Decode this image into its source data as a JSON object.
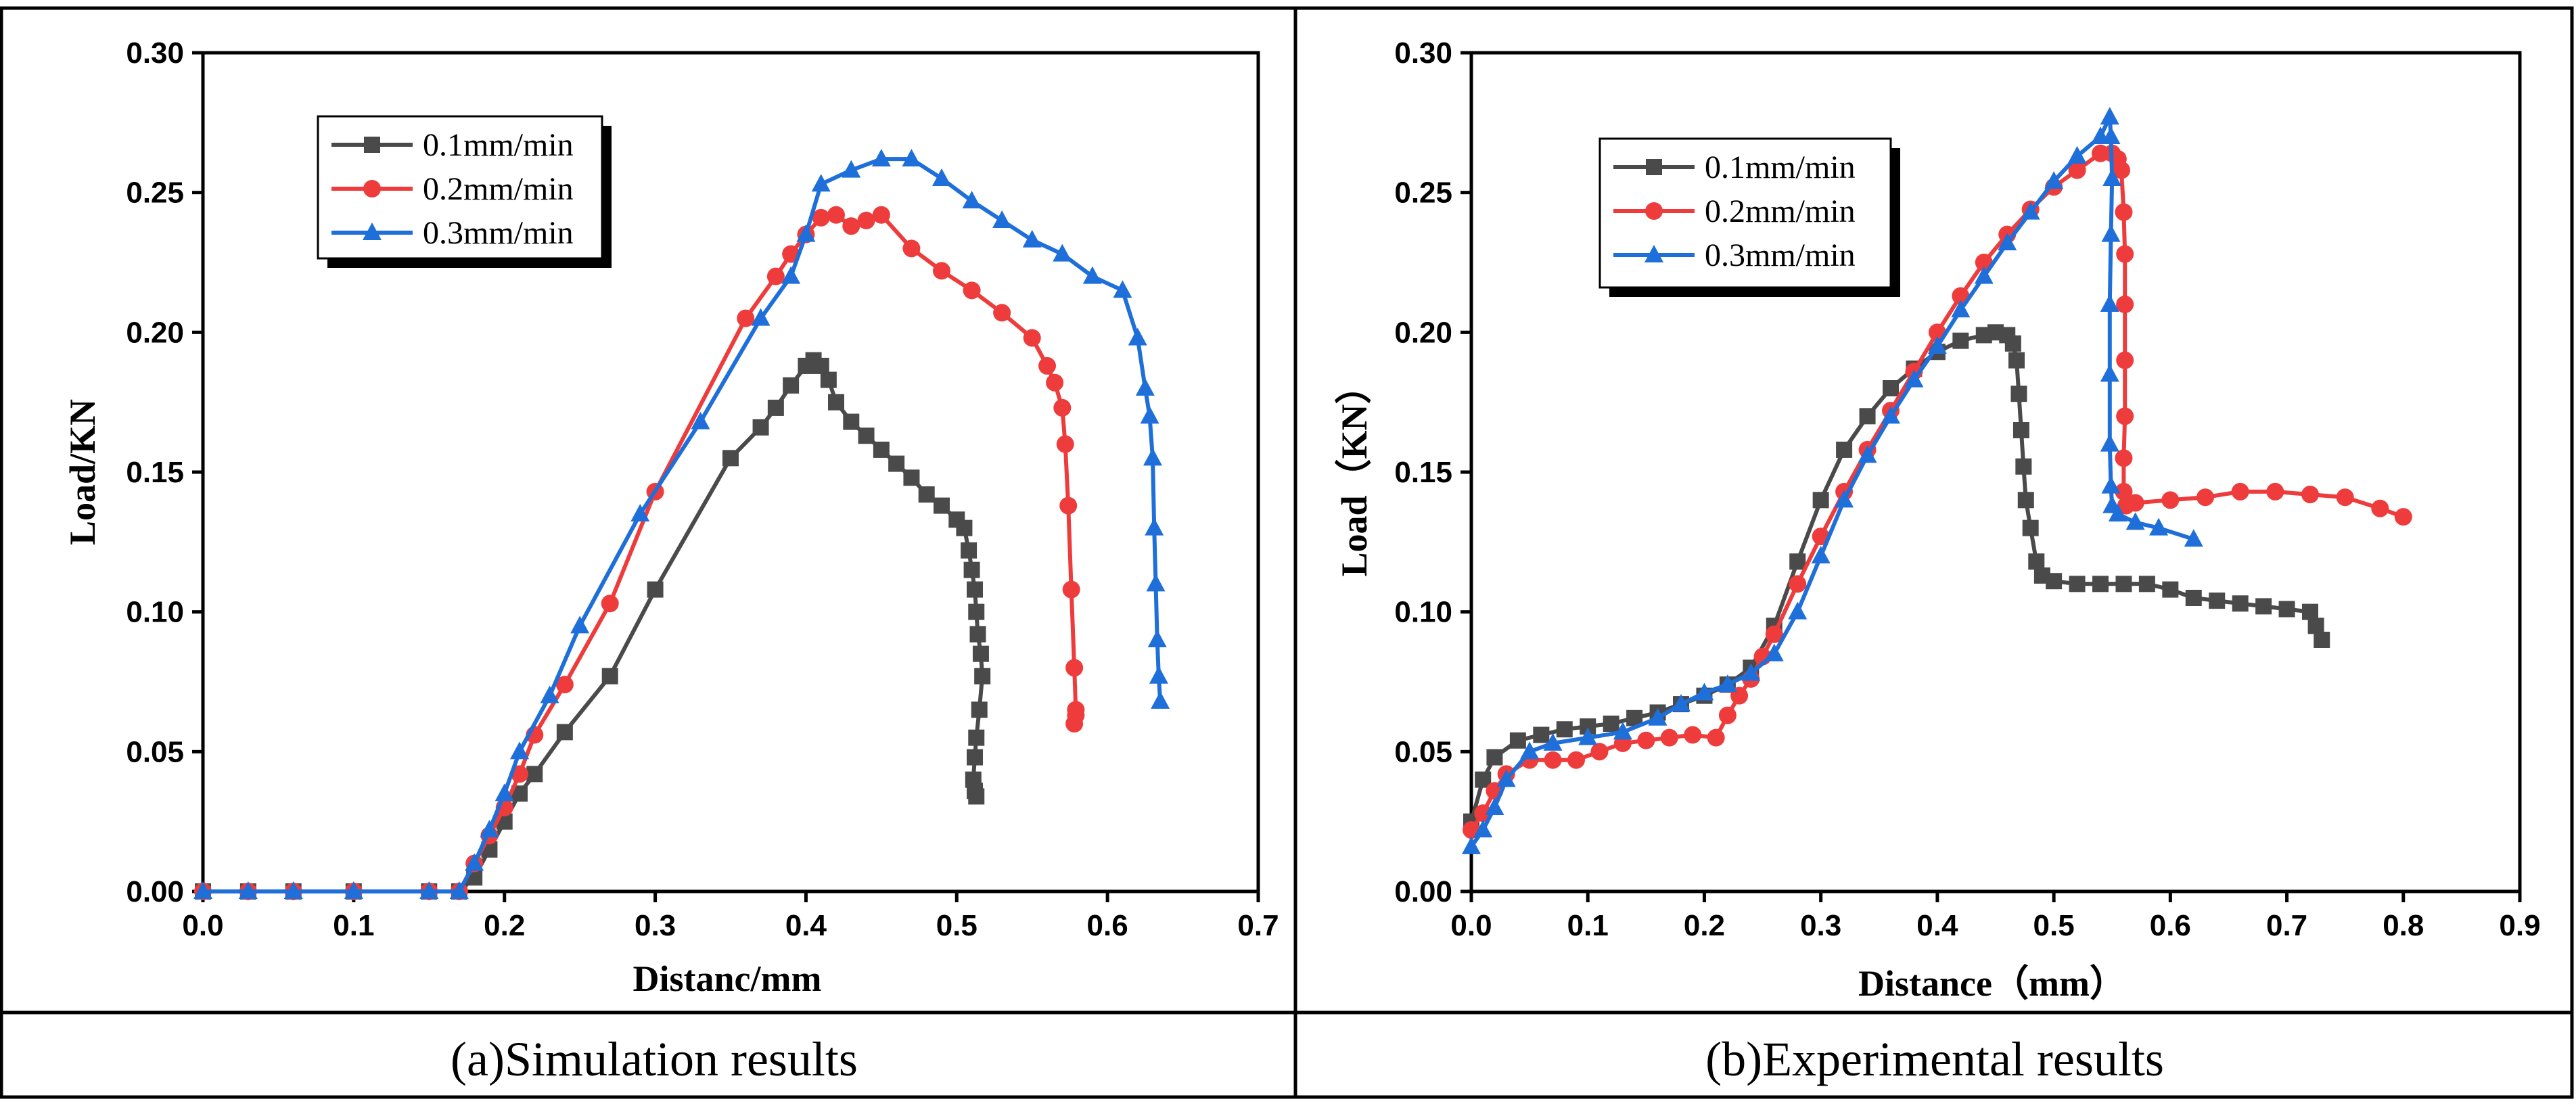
{
  "captions": {
    "left": "(a)Simulation results",
    "right": "(b)Experimental results"
  },
  "colors": {
    "series1": "#4a4a4a",
    "series2": "#ee3b3b",
    "series3": "#1e6fd9"
  },
  "chart_data": [
    {
      "type": "line",
      "title": "",
      "xlabel": "Distanc/mm",
      "ylabel": "Load/KN",
      "xlim": [
        0,
        0.7
      ],
      "ylim": [
        0,
        0.3
      ],
      "xticks": [
        "0.0",
        "0.1",
        "0.2",
        "0.3",
        "0.4",
        "0.5",
        "0.6",
        "0.7"
      ],
      "yticks": [
        "0.00",
        "0.05",
        "0.10",
        "0.15",
        "0.20",
        "0.25",
        "0.30"
      ],
      "legend_position": "top-left",
      "series": [
        {
          "name": "0.1mm/min",
          "marker": "square",
          "x": [
            0.0,
            0.03,
            0.06,
            0.1,
            0.15,
            0.17,
            0.18,
            0.19,
            0.2,
            0.21,
            0.22,
            0.24,
            0.27,
            0.3,
            0.35,
            0.37,
            0.38,
            0.39,
            0.4,
            0.405,
            0.41,
            0.415,
            0.42,
            0.43,
            0.44,
            0.45,
            0.46,
            0.47,
            0.48,
            0.49,
            0.5,
            0.505,
            0.508,
            0.51,
            0.512,
            0.513,
            0.514,
            0.516,
            0.517,
            0.515,
            0.513,
            0.512,
            0.511,
            0.512,
            0.513
          ],
          "y": [
            0.0,
            0.0,
            0.0,
            0.0,
            0.0,
            0.0,
            0.005,
            0.015,
            0.025,
            0.035,
            0.042,
            0.057,
            0.077,
            0.108,
            0.155,
            0.166,
            0.173,
            0.181,
            0.188,
            0.19,
            0.188,
            0.183,
            0.175,
            0.168,
            0.163,
            0.158,
            0.153,
            0.148,
            0.142,
            0.138,
            0.133,
            0.13,
            0.122,
            0.115,
            0.108,
            0.1,
            0.092,
            0.085,
            0.077,
            0.065,
            0.055,
            0.048,
            0.04,
            0.036,
            0.034
          ]
        },
        {
          "name": "0.2mm/min",
          "marker": "circle",
          "x": [
            0.0,
            0.03,
            0.06,
            0.1,
            0.15,
            0.17,
            0.18,
            0.19,
            0.2,
            0.21,
            0.22,
            0.24,
            0.27,
            0.3,
            0.36,
            0.38,
            0.39,
            0.4,
            0.41,
            0.42,
            0.43,
            0.44,
            0.45,
            0.47,
            0.49,
            0.51,
            0.53,
            0.55,
            0.56,
            0.565,
            0.57,
            0.572,
            0.574,
            0.576,
            0.578,
            0.579,
            0.579,
            0.578
          ],
          "y": [
            0.0,
            0.0,
            0.0,
            0.0,
            0.0,
            0.0,
            0.01,
            0.02,
            0.03,
            0.042,
            0.056,
            0.074,
            0.103,
            0.143,
            0.205,
            0.22,
            0.228,
            0.235,
            0.241,
            0.242,
            0.238,
            0.24,
            0.242,
            0.23,
            0.222,
            0.215,
            0.207,
            0.198,
            0.188,
            0.182,
            0.173,
            0.16,
            0.138,
            0.108,
            0.08,
            0.065,
            0.063,
            0.06
          ]
        },
        {
          "name": "0.3mm/min",
          "marker": "triangle",
          "x": [
            0.0,
            0.03,
            0.06,
            0.1,
            0.15,
            0.17,
            0.18,
            0.19,
            0.2,
            0.21,
            0.23,
            0.25,
            0.29,
            0.33,
            0.37,
            0.39,
            0.4,
            0.41,
            0.43,
            0.45,
            0.47,
            0.49,
            0.51,
            0.53,
            0.55,
            0.57,
            0.59,
            0.61,
            0.62,
            0.625,
            0.628,
            0.63,
            0.631,
            0.632,
            0.633,
            0.634,
            0.635
          ],
          "y": [
            0.0,
            0.0,
            0.0,
            0.0,
            0.0,
            0.0,
            0.01,
            0.022,
            0.035,
            0.05,
            0.07,
            0.095,
            0.135,
            0.168,
            0.205,
            0.22,
            0.235,
            0.253,
            0.258,
            0.262,
            0.262,
            0.255,
            0.247,
            0.24,
            0.233,
            0.228,
            0.22,
            0.215,
            0.198,
            0.18,
            0.17,
            0.155,
            0.13,
            0.11,
            0.09,
            0.077,
            0.068
          ]
        }
      ]
    },
    {
      "type": "line",
      "title": "",
      "xlabel": "Distance（mm）",
      "ylabel": "Load（KN）",
      "xlim": [
        0,
        0.9
      ],
      "ylim": [
        0,
        0.3
      ],
      "xticks": [
        "0.0",
        "0.1",
        "0.2",
        "0.3",
        "0.4",
        "0.5",
        "0.6",
        "0.7",
        "0.8",
        "0.9"
      ],
      "yticks": [
        "0.00",
        "0.05",
        "0.10",
        "0.15",
        "0.20",
        "0.25",
        "0.30"
      ],
      "legend_position": "top-left",
      "series": [
        {
          "name": "0.1mm/min",
          "marker": "square",
          "x": [
            0.0,
            0.01,
            0.02,
            0.04,
            0.06,
            0.08,
            0.1,
            0.12,
            0.14,
            0.16,
            0.18,
            0.2,
            0.22,
            0.24,
            0.26,
            0.28,
            0.3,
            0.32,
            0.34,
            0.36,
            0.38,
            0.4,
            0.42,
            0.44,
            0.45,
            0.46,
            0.465,
            0.468,
            0.47,
            0.472,
            0.474,
            0.476,
            0.48,
            0.485,
            0.49,
            0.5,
            0.52,
            0.54,
            0.56,
            0.58,
            0.6,
            0.62,
            0.64,
            0.66,
            0.68,
            0.7,
            0.72,
            0.725,
            0.73
          ],
          "y": [
            0.025,
            0.04,
            0.048,
            0.054,
            0.056,
            0.058,
            0.059,
            0.06,
            0.062,
            0.064,
            0.067,
            0.07,
            0.074,
            0.08,
            0.095,
            0.118,
            0.14,
            0.158,
            0.17,
            0.18,
            0.187,
            0.193,
            0.197,
            0.199,
            0.2,
            0.199,
            0.196,
            0.19,
            0.178,
            0.165,
            0.152,
            0.14,
            0.13,
            0.118,
            0.113,
            0.111,
            0.11,
            0.11,
            0.11,
            0.11,
            0.108,
            0.105,
            0.104,
            0.103,
            0.102,
            0.101,
            0.1,
            0.095,
            0.09
          ]
        },
        {
          "name": "0.2mm/min",
          "marker": "circle",
          "x": [
            0.0,
            0.01,
            0.02,
            0.03,
            0.05,
            0.07,
            0.09,
            0.11,
            0.13,
            0.15,
            0.17,
            0.19,
            0.21,
            0.22,
            0.23,
            0.24,
            0.25,
            0.26,
            0.28,
            0.3,
            0.32,
            0.34,
            0.36,
            0.38,
            0.4,
            0.42,
            0.44,
            0.46,
            0.48,
            0.5,
            0.52,
            0.54,
            0.55,
            0.555,
            0.558,
            0.56,
            0.561,
            0.561,
            0.561,
            0.561,
            0.56,
            0.56,
            0.562,
            0.57,
            0.6,
            0.63,
            0.66,
            0.69,
            0.72,
            0.75,
            0.78,
            0.8
          ],
          "y": [
            0.022,
            0.028,
            0.036,
            0.042,
            0.047,
            0.047,
            0.047,
            0.05,
            0.053,
            0.054,
            0.055,
            0.056,
            0.055,
            0.063,
            0.07,
            0.076,
            0.084,
            0.092,
            0.11,
            0.127,
            0.143,
            0.158,
            0.172,
            0.186,
            0.2,
            0.213,
            0.225,
            0.235,
            0.244,
            0.252,
            0.258,
            0.264,
            0.264,
            0.262,
            0.258,
            0.243,
            0.228,
            0.21,
            0.19,
            0.17,
            0.155,
            0.143,
            0.138,
            0.139,
            0.14,
            0.141,
            0.143,
            0.143,
            0.142,
            0.141,
            0.137,
            0.134
          ]
        },
        {
          "name": "0.3mm/min",
          "marker": "triangle",
          "x": [
            0.0,
            0.01,
            0.02,
            0.03,
            0.05,
            0.07,
            0.1,
            0.13,
            0.16,
            0.18,
            0.2,
            0.22,
            0.24,
            0.26,
            0.28,
            0.3,
            0.32,
            0.34,
            0.36,
            0.38,
            0.4,
            0.42,
            0.44,
            0.46,
            0.48,
            0.5,
            0.52,
            0.54,
            0.548,
            0.549,
            0.55,
            0.549,
            0.548,
            0.548,
            0.548,
            0.549,
            0.55,
            0.555,
            0.57,
            0.59,
            0.62
          ],
          "y": [
            0.016,
            0.022,
            0.03,
            0.04,
            0.05,
            0.053,
            0.055,
            0.057,
            0.062,
            0.067,
            0.071,
            0.074,
            0.078,
            0.085,
            0.1,
            0.12,
            0.14,
            0.156,
            0.17,
            0.183,
            0.195,
            0.208,
            0.22,
            0.232,
            0.243,
            0.254,
            0.263,
            0.27,
            0.277,
            0.27,
            0.255,
            0.235,
            0.21,
            0.185,
            0.16,
            0.145,
            0.138,
            0.135,
            0.132,
            0.13,
            0.126
          ]
        }
      ]
    }
  ]
}
